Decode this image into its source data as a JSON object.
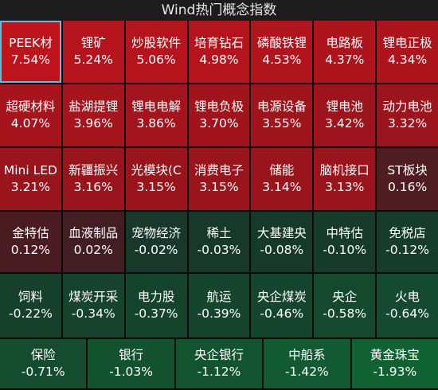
{
  "title": "Wind热门概念指数",
  "rows": [
    [
      {
        "name": "PEEK材",
        "pct": "7.54%",
        "color": "#c0141c",
        "selected": true
      },
      {
        "name": "锂矿",
        "pct": "5.24%",
        "color": "#b5141c"
      },
      {
        "name": "炒股软件",
        "pct": "5.06%",
        "color": "#b5141c"
      },
      {
        "name": "培育钻石",
        "pct": "4.98%",
        "color": "#b5141c"
      },
      {
        "name": "磷酸铁锂",
        "pct": "4.53%",
        "color": "#b0141c"
      },
      {
        "name": "电路板",
        "pct": "4.37%",
        "color": "#ad141c"
      },
      {
        "name": "锂电正极",
        "pct": "4.34%",
        "color": "#ad141c"
      }
    ],
    [
      {
        "name": "超硬材料",
        "pct": "4.07%",
        "color": "#a8141c"
      },
      {
        "name": "盐湖提锂",
        "pct": "3.96%",
        "color": "#a6141c"
      },
      {
        "name": "锂电电解",
        "pct": "3.86%",
        "color": "#a4141c"
      },
      {
        "name": "锂电负极",
        "pct": "3.70%",
        "color": "#a2141c"
      },
      {
        "name": "电源设备",
        "pct": "3.55%",
        "color": "#a0141c"
      },
      {
        "name": "锂电池",
        "pct": "3.42%",
        "color": "#9e141c"
      },
      {
        "name": "动力电池",
        "pct": "3.32%",
        "color": "#9c141c"
      }
    ],
    [
      {
        "name": "Mini LED",
        "pct": "3.21%",
        "color": "#9a141c"
      },
      {
        "name": "新疆振兴",
        "pct": "3.16%",
        "color": "#9a141c"
      },
      {
        "name": "光模块(C",
        "pct": "3.15%",
        "color": "#9a141c"
      },
      {
        "name": "消费电子",
        "pct": "3.15%",
        "color": "#9a141c"
      },
      {
        "name": "储能",
        "pct": "3.14%",
        "color": "#9a141c"
      },
      {
        "name": "脑机接口",
        "pct": "3.13%",
        "color": "#99141c"
      },
      {
        "name": "ST板块",
        "pct": "0.16%",
        "color": "#4f1c22"
      }
    ],
    [
      {
        "name": "金特估",
        "pct": "0.12%",
        "color": "#4a1c22"
      },
      {
        "name": "血液制品",
        "pct": "0.02%",
        "color": "#421d22"
      },
      {
        "name": "宠物经济",
        "pct": "-0.02%",
        "color": "#17382a"
      },
      {
        "name": "稀土",
        "pct": "-0.03%",
        "color": "#17392a"
      },
      {
        "name": "大基建央",
        "pct": "-0.08%",
        "color": "#163a2a"
      },
      {
        "name": "中特估",
        "pct": "-0.10%",
        "color": "#163b2b"
      },
      {
        "name": "免税店",
        "pct": "-0.12%",
        "color": "#163c2b"
      }
    ],
    [
      {
        "name": "饲料",
        "pct": "-0.22%",
        "color": "#15402c"
      },
      {
        "name": "煤炭开采",
        "pct": "-0.34%",
        "color": "#15432d"
      },
      {
        "name": "电力股",
        "pct": "-0.37%",
        "color": "#15442d"
      },
      {
        "name": "航运",
        "pct": "-0.39%",
        "color": "#15452d"
      },
      {
        "name": "央企煤炭",
        "pct": "-0.46%",
        "color": "#14462e"
      },
      {
        "name": "央企",
        "pct": "-0.58%",
        "color": "#14492e"
      },
      {
        "name": "火电",
        "pct": "-0.64%",
        "color": "#144a2f"
      }
    ],
    [
      {
        "name": "保险",
        "pct": "-0.71%",
        "color": "#144c2f"
      },
      {
        "name": "银行",
        "pct": "-1.03%",
        "color": "#13522f"
      },
      {
        "name": "央企银行",
        "pct": "-1.12%",
        "color": "#135430"
      },
      {
        "name": "中船系",
        "pct": "-1.42%",
        "color": "#125a31"
      },
      {
        "name": "黄金珠宝",
        "pct": "-1.93%",
        "color": "#116232"
      }
    ]
  ]
}
